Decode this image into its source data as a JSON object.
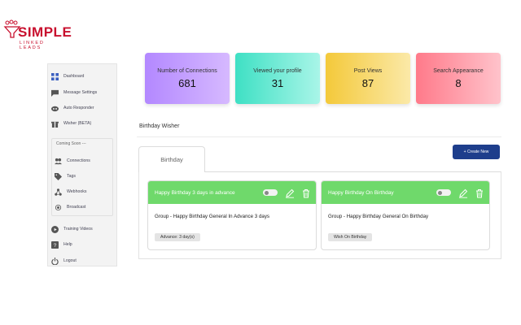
{
  "logo": {
    "main": "SIMPLE",
    "sub": "LINKED LEADS"
  },
  "sidebar": {
    "items": [
      {
        "label": "Dashboard",
        "icon": "dashboard-icon"
      },
      {
        "label": "Message Settings",
        "icon": "message-icon"
      },
      {
        "label": "Auto Responder",
        "icon": "robot-icon"
      },
      {
        "label": "Wisher (BETA)",
        "icon": "gift-icon"
      }
    ],
    "coming_soon_label": "Coming Soon ---",
    "coming_soon_items": [
      {
        "label": "Connections",
        "icon": "people-icon"
      },
      {
        "label": "Tags",
        "icon": "tag-icon"
      },
      {
        "label": "Webhooks",
        "icon": "webhook-icon"
      },
      {
        "label": "Broadcast",
        "icon": "broadcast-icon"
      }
    ],
    "bottom_items": [
      {
        "label": "Training Videos",
        "icon": "play-icon"
      },
      {
        "label": "Help",
        "icon": "help-icon"
      },
      {
        "label": "Logout",
        "icon": "power-icon"
      }
    ]
  },
  "stats": [
    {
      "label": "Number of Connections",
      "value": "681"
    },
    {
      "label": "Viewed your profile",
      "value": "31"
    },
    {
      "label": "Post Views",
      "value": "87"
    },
    {
      "label": "Search Appearance",
      "value": "8"
    }
  ],
  "birthday": {
    "section_title": "Birthday Wisher",
    "tab_label": "Birthday",
    "create_button": "+ Create New",
    "cards": [
      {
        "title": "Happy Birthday 3 days in advance",
        "group": "Group - Happy Birthday General In Advance 3 days",
        "badge": "Advance: 3 day(s)"
      },
      {
        "title": "Happy Birthday On Birthday",
        "group": "Group - Happy Birthday General On Birthday",
        "badge": "Wish On Birthday"
      }
    ]
  },
  "colors": {
    "brand": "#c8102e",
    "header_green": "#6fd96b",
    "primary_button": "#1e3e8c"
  }
}
